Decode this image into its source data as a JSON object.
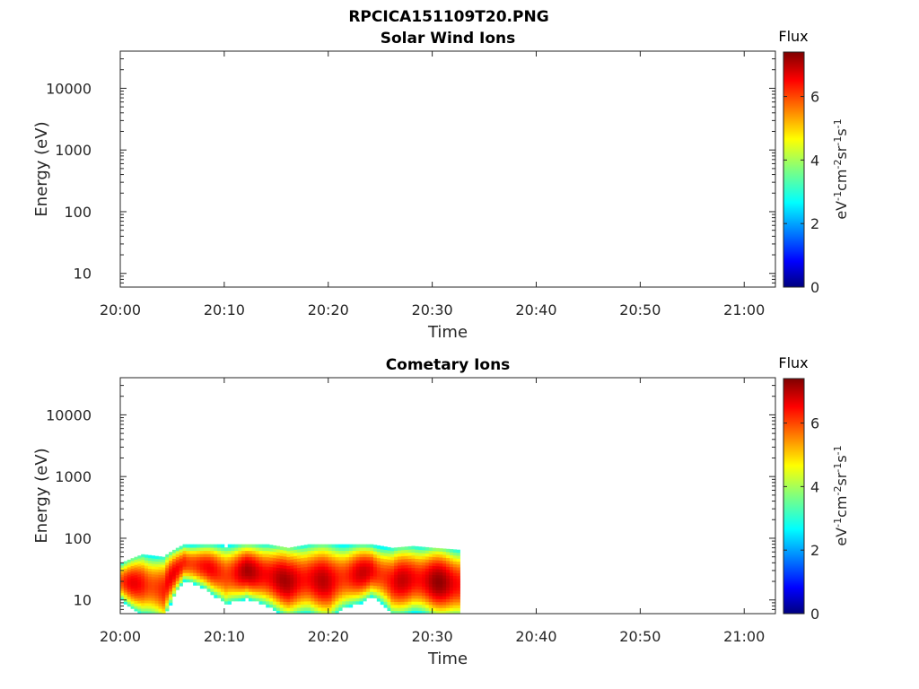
{
  "figure": {
    "title": "RPCICA151109T20.PNG"
  },
  "chart_data": [
    {
      "type": "heatmap",
      "title": "Solar Wind Ions",
      "xlabel": "Time",
      "ylabel": "Energy (eV)",
      "x_ticks": [
        "20:00",
        "20:10",
        "20:20",
        "20:30",
        "20:40",
        "20:50",
        "21:00"
      ],
      "xlim": [
        "20:00",
        "21:03"
      ],
      "y_scale": "log",
      "y_ticks": [
        "10",
        "100",
        "1000",
        "10000"
      ],
      "ylim": [
        6,
        40000
      ],
      "grid": false,
      "colorbar": {
        "title": "Flux",
        "label": "eV-1cm-2sr-1s-1",
        "ticks": [
          "0",
          "2",
          "4",
          "6"
        ],
        "range": [
          0,
          7.4
        ],
        "colormap": "jet"
      },
      "data": {
        "time_start": "20:00",
        "time_end": "20:00",
        "energy_min": 6,
        "energy_max": 6,
        "note_values": []
      }
    },
    {
      "type": "heatmap",
      "title": "Cometary Ions",
      "xlabel": "Time",
      "ylabel": "Energy (eV)",
      "x_ticks": [
        "20:00",
        "20:10",
        "20:20",
        "20:30",
        "20:40",
        "20:50",
        "21:00"
      ],
      "xlim": [
        "20:00",
        "21:03"
      ],
      "y_scale": "log",
      "y_ticks": [
        "10",
        "100",
        "1000",
        "10000"
      ],
      "ylim": [
        6,
        40000
      ],
      "grid": false,
      "colorbar": {
        "title": "Flux",
        "label": "eV-1cm-2sr-1s-1",
        "ticks": [
          "0",
          "2",
          "4",
          "6"
        ],
        "range": [
          0,
          7.4
        ],
        "colormap": "jet"
      },
      "data": {
        "time_start": "20:00",
        "time_end": "20:32.5",
        "energy_min": 6,
        "energy_max": 80,
        "columns": [
          {
            "t": 0.0,
            "top": 40,
            "peak": 20,
            "level": 5.8
          },
          {
            "t": 2.0,
            "top": 55,
            "peak": 18,
            "level": 6.2
          },
          {
            "t": 4.0,
            "top": 50,
            "peak": 15,
            "level": 6.0
          },
          {
            "t": 6.0,
            "top": 80,
            "peak": 40,
            "level": 6.6
          },
          {
            "t": 8.0,
            "top": 80,
            "peak": 35,
            "level": 6.4
          },
          {
            "t": 10.0,
            "top": 80,
            "peak": 25,
            "level": 6.6
          },
          {
            "t": 12.0,
            "top": 80,
            "peak": 30,
            "level": 6.8
          },
          {
            "t": 14.0,
            "top": 80,
            "peak": 25,
            "level": 6.7
          },
          {
            "t": 16.0,
            "top": 70,
            "peak": 20,
            "level": 6.5
          },
          {
            "t": 18.0,
            "top": 80,
            "peak": 22,
            "level": 6.6
          },
          {
            "t": 20.0,
            "top": 80,
            "peak": 20,
            "level": 6.6
          },
          {
            "t": 22.0,
            "top": 80,
            "peak": 25,
            "level": 6.7
          },
          {
            "t": 24.0,
            "top": 80,
            "peak": 30,
            "level": 6.8
          },
          {
            "t": 26.0,
            "top": 70,
            "peak": 20,
            "level": 6.5
          },
          {
            "t": 28.0,
            "top": 75,
            "peak": 22,
            "level": 6.6
          },
          {
            "t": 30.0,
            "top": 70,
            "peak": 20,
            "level": 6.7
          },
          {
            "t": 32.5,
            "top": 65,
            "peak": 18,
            "level": 6.6
          }
        ]
      }
    }
  ]
}
